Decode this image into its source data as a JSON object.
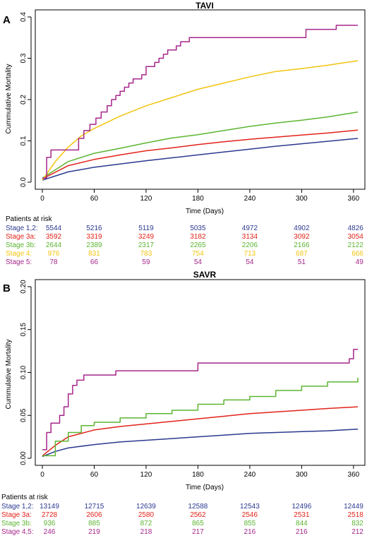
{
  "colors": {
    "blue": "#2b3990",
    "red": "#e2231a",
    "green": "#5cb531",
    "yellow": "#f2c40f",
    "purple": "#a6268b"
  },
  "chart_data": [
    {
      "type": "line",
      "panel": "A",
      "title": "TAVI",
      "xlabel": "Time (Days)",
      "ylabel": "Cummulative Mortality",
      "xlim": [
        0,
        365
      ],
      "ylim": [
        0,
        0.4
      ],
      "xticks": [
        0,
        60,
        120,
        180,
        240,
        300,
        360
      ],
      "yticks": [
        "0.0",
        "0.1",
        "0.2",
        "0.3",
        "0.4"
      ],
      "series": [
        {
          "name": "Stage 1,2",
          "color": "blue",
          "step": false,
          "x": [
            0,
            30,
            60,
            90,
            120,
            150,
            180,
            210,
            240,
            270,
            300,
            330,
            365
          ],
          "y": [
            0.005,
            0.025,
            0.036,
            0.044,
            0.052,
            0.059,
            0.066,
            0.073,
            0.08,
            0.087,
            0.093,
            0.099,
            0.106
          ]
        },
        {
          "name": "Stage 3a",
          "color": "red",
          "step": false,
          "x": [
            0,
            30,
            60,
            90,
            120,
            150,
            180,
            210,
            240,
            270,
            300,
            330,
            365
          ],
          "y": [
            0.008,
            0.04,
            0.055,
            0.066,
            0.076,
            0.083,
            0.091,
            0.098,
            0.104,
            0.109,
            0.114,
            0.119,
            0.126
          ]
        },
        {
          "name": "Stage 3b",
          "color": "green",
          "step": false,
          "x": [
            0,
            30,
            60,
            90,
            120,
            150,
            180,
            210,
            240,
            270,
            300,
            330,
            365
          ],
          "y": [
            0.01,
            0.05,
            0.07,
            0.082,
            0.095,
            0.107,
            0.115,
            0.125,
            0.135,
            0.143,
            0.15,
            0.158,
            0.17
          ]
        },
        {
          "name": "Stage 4",
          "color": "yellow",
          "step": false,
          "x": [
            0,
            15,
            30,
            45,
            60,
            90,
            120,
            150,
            180,
            210,
            240,
            270,
            300,
            330,
            365
          ],
          "y": [
            0.005,
            0.05,
            0.085,
            0.112,
            0.13,
            0.16,
            0.185,
            0.205,
            0.225,
            0.24,
            0.255,
            0.268,
            0.275,
            0.283,
            0.294
          ]
        },
        {
          "name": "Stage 5",
          "color": "purple",
          "step": true,
          "x": [
            0,
            5,
            10,
            42,
            48,
            55,
            62,
            68,
            75,
            80,
            85,
            90,
            95,
            100,
            105,
            115,
            120,
            130,
            135,
            140,
            145,
            155,
            160,
            170,
            190,
            240,
            300,
            305,
            340,
            365
          ],
          "y": [
            0.01,
            0.06,
            0.078,
            0.106,
            0.125,
            0.14,
            0.155,
            0.17,
            0.185,
            0.2,
            0.21,
            0.22,
            0.23,
            0.24,
            0.25,
            0.26,
            0.28,
            0.29,
            0.3,
            0.31,
            0.32,
            0.33,
            0.34,
            0.35,
            0.35,
            0.35,
            0.35,
            0.37,
            0.38,
            0.38
          ]
        }
      ],
      "at_risk": {
        "header": "Patients at risk",
        "rows": [
          {
            "label": "Stage 1,2:",
            "color": "blue",
            "values": [
              "5544",
              "5216",
              "5119",
              "5035",
              "4972",
              "4902",
              "4826"
            ]
          },
          {
            "label": "Stage 3a:",
            "color": "red",
            "values": [
              "3592",
              "3319",
              "3249",
              "3182",
              "3134",
              "3092",
              "3054"
            ]
          },
          {
            "label": "Stage 3b:",
            "color": "green",
            "values": [
              "2644",
              "2389",
              "2317",
              "2265",
              "2206",
              "2166",
              "2122"
            ]
          },
          {
            "label": "Stage 4:",
            "color": "yellow",
            "values": [
              "976",
              "831",
              "783",
              "754",
              "713",
              "687",
              "666"
            ]
          },
          {
            "label": "Stage 5:",
            "color": "purple",
            "values": [
              "78",
              "66",
              "59",
              "54",
              "54",
              "51",
              "49"
            ]
          }
        ]
      }
    },
    {
      "type": "line",
      "panel": "B",
      "title": "SAVR",
      "xlabel": "Time (Days)",
      "ylabel": "Cummulative Mortality",
      "xlim": [
        0,
        365
      ],
      "ylim": [
        0,
        0.2
      ],
      "xticks": [
        0,
        60,
        120,
        180,
        240,
        300,
        360
      ],
      "yticks": [
        "0.00",
        "0.05",
        "0.10",
        "0.15",
        "0.20"
      ],
      "series": [
        {
          "name": "Stage 1,2",
          "color": "blue",
          "step": false,
          "x": [
            0,
            15,
            30,
            60,
            90,
            120,
            150,
            180,
            210,
            240,
            270,
            300,
            330,
            365
          ],
          "y": [
            0.002,
            0.008,
            0.012,
            0.016,
            0.019,
            0.021,
            0.023,
            0.025,
            0.027,
            0.029,
            0.03,
            0.031,
            0.032,
            0.034
          ]
        },
        {
          "name": "Stage 3a",
          "color": "red",
          "step": false,
          "x": [
            0,
            15,
            30,
            60,
            90,
            120,
            150,
            180,
            210,
            240,
            270,
            300,
            330,
            365
          ],
          "y": [
            0.003,
            0.015,
            0.025,
            0.033,
            0.037,
            0.04,
            0.043,
            0.046,
            0.049,
            0.052,
            0.054,
            0.056,
            0.058,
            0.06
          ]
        },
        {
          "name": "Stage 3b",
          "color": "green",
          "step": true,
          "x": [
            0,
            15,
            30,
            45,
            60,
            90,
            120,
            150,
            180,
            210,
            240,
            270,
            300,
            330,
            365
          ],
          "y": [
            0.003,
            0.02,
            0.03,
            0.038,
            0.042,
            0.047,
            0.052,
            0.056,
            0.063,
            0.068,
            0.072,
            0.079,
            0.084,
            0.089,
            0.094
          ]
        },
        {
          "name": "Stage 4,5",
          "color": "purple",
          "step": true,
          "x": [
            0,
            5,
            10,
            20,
            25,
            30,
            35,
            40,
            48,
            55,
            85,
            180,
            215,
            355,
            360,
            365
          ],
          "y": [
            0.01,
            0.03,
            0.041,
            0.05,
            0.06,
            0.075,
            0.085,
            0.091,
            0.097,
            0.097,
            0.102,
            0.111,
            0.111,
            0.116,
            0.127,
            0.127
          ]
        }
      ],
      "at_risk": {
        "header": "Patients at risk",
        "rows": [
          {
            "label": "Stage 1,2:",
            "color": "blue",
            "values": [
              "13149",
              "12715",
              "12639",
              "12588",
              "12543",
              "12496",
              "12449"
            ]
          },
          {
            "label": "Stage 3a:",
            "color": "red",
            "values": [
              "2728",
              "2606",
              "2580",
              "2562",
              "2546",
              "2531",
              "2518"
            ]
          },
          {
            "label": "Stage 3b:",
            "color": "green",
            "values": [
              "936",
              "885",
              "872",
              "865",
              "855",
              "844",
              "832"
            ]
          },
          {
            "label": "Stage 4,5:",
            "color": "purple",
            "values": [
              "246",
              "219",
              "218",
              "217",
              "216",
              "216",
              "212"
            ]
          }
        ]
      }
    }
  ]
}
